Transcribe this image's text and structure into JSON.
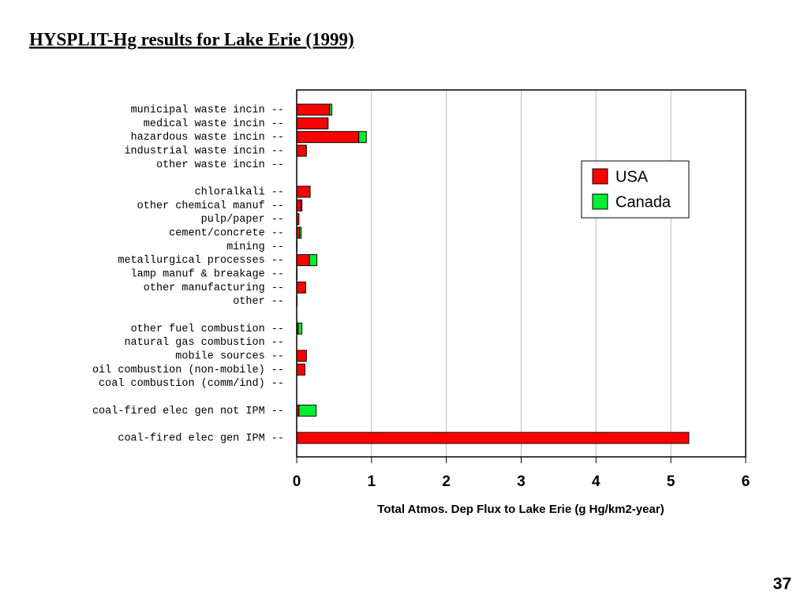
{
  "chart_data": {
    "type": "stacked-barh",
    "title": "HYSPLIT-Hg results for Lake Erie (1999)",
    "x_label": "Total Atmos. Dep Flux to Lake Erie (g Hg/km2-year)",
    "categories": [
      "municipal waste incin --",
      "medical waste incin --",
      "hazardous waste incin --",
      "industrial waste incin --",
      "other waste incin --",
      null,
      "chloralkali --",
      "other chemical manuf --",
      "pulp/paper --",
      "cement/concrete --",
      "mining --",
      "metallurgical processes --",
      "lamp manuf & breakage --",
      "other manufacturing --",
      "other --",
      null,
      "other fuel combustion --",
      "natural gas combustion --",
      "mobile sources --",
      "oil combustion (non-mobile) --",
      "coal combustion (comm/ind) --",
      null,
      "coal-fired elec gen not IPM --",
      null,
      "coal-fired elec gen IPM --"
    ],
    "series": [
      {
        "name": "USA",
        "color": "#ff0000",
        "values": [
          0.44,
          0.42,
          0.83,
          0.13,
          0,
          null,
          0.18,
          0.06,
          0.03,
          0.04,
          0.005,
          0.17,
          0.005,
          0.12,
          0.005,
          null,
          0.02,
          0,
          0.13,
          0.11,
          0,
          null,
          0.03,
          null,
          5.24
        ]
      },
      {
        "name": "Canada",
        "color": "#00ee33",
        "values": [
          0.03,
          0,
          0.1,
          0,
          0,
          null,
          0,
          0.01,
          0,
          0.02,
          0,
          0.1,
          0,
          0,
          0,
          null,
          0.05,
          0,
          0,
          0,
          0,
          null,
          0.23,
          null,
          0
        ]
      }
    ],
    "xlim": [
      0,
      6
    ],
    "xticks": [
      0,
      1,
      2,
      3,
      4,
      5,
      6
    ],
    "grid": true,
    "legend": "upper right"
  },
  "page_number": "37"
}
